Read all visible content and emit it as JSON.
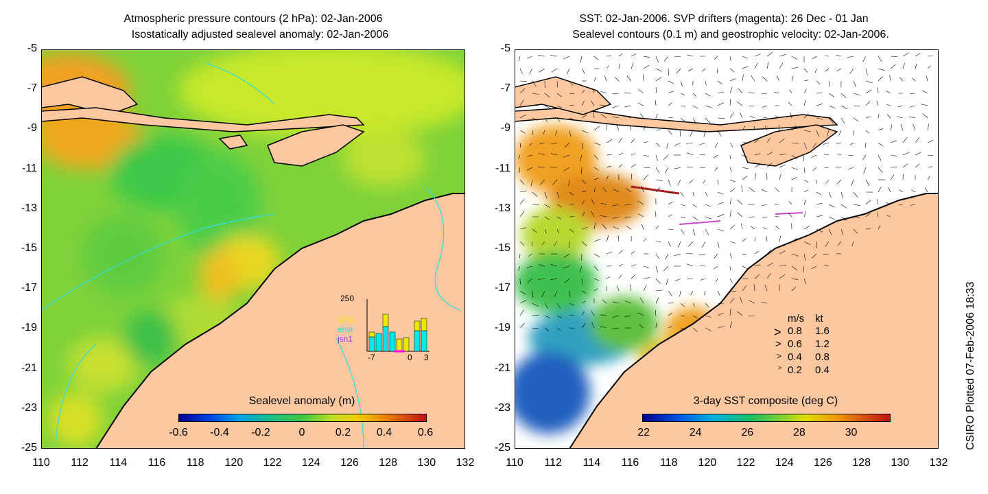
{
  "left_panel": {
    "title_line1": "Atmospheric pressure contours (2 hPa): 02-Jan-2006",
    "title_line2": "Isostatically adjusted sealevel anomaly: 02-Jan-2006",
    "colorbar": {
      "title": "Sealevel anomaly (m)",
      "ticks": [
        "-0.6",
        "-0.4",
        "-0.2",
        "0",
        "0.2",
        "0.4",
        "0.6"
      ],
      "range": [
        -0.6,
        0.6
      ]
    },
    "inset_histogram": {
      "y_label": "250",
      "x_ticks": [
        "-7",
        "0",
        "3"
      ],
      "satellites": [
        {
          "name": "GFO",
          "color": "#e8e800"
        },
        {
          "name": "envi",
          "color": "#00e8e8"
        },
        {
          "name": "jsn1",
          "color": "#8833ff"
        }
      ]
    }
  },
  "right_panel": {
    "title_line1": "SST: 02-Jan-2006. SVP drifters (magenta): 26 Dec - 01 Jan",
    "title_line2": "Sealevel contours (0.1 m) and geostrophic velocity: 02-Jan-2006.",
    "colorbar": {
      "title": "3-day SST composite (deg C)",
      "ticks": [
        "22",
        "24",
        "26",
        "28",
        "30"
      ],
      "range": [
        22,
        30
      ]
    },
    "velocity_legend": {
      "header_ms": "m/s",
      "header_kt": "kt",
      "rows": [
        {
          "ms": "0.8",
          "kt": "1.6"
        },
        {
          "ms": "0.6",
          "kt": "1.2"
        },
        {
          "ms": "0.4",
          "kt": "0.8"
        },
        {
          "ms": "0.2",
          "kt": "0.4"
        }
      ]
    }
  },
  "axes": {
    "x_ticks": [
      "110",
      "112",
      "114",
      "116",
      "118",
      "120",
      "122",
      "124",
      "126",
      "128",
      "130",
      "132"
    ],
    "y_ticks": [
      "-5",
      "-7",
      "-9",
      "-11",
      "-13",
      "-15",
      "-17",
      "-19",
      "-21",
      "-23",
      "-25"
    ],
    "lon_range": [
      110,
      132
    ],
    "lat_range": [
      -25,
      -5
    ]
  },
  "credit": "CSIRO Plotted 07-Feb-2006 18:33",
  "colors": {
    "land": "#fdc8a0",
    "coast": "#000000",
    "contour": "#33dddd"
  }
}
